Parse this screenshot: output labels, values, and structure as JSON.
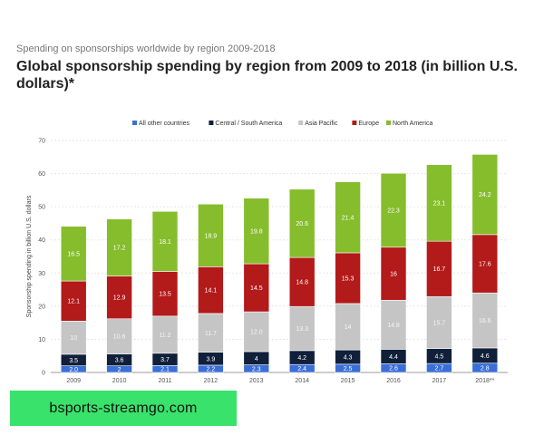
{
  "header": {
    "subtitle": "Spending on sponsorships worldwide by region 2009-2018",
    "title": "Global sponsorship spending by region from 2009 to 2018 (in billion U.S. dollars)*"
  },
  "watermark": {
    "text": "bsports-streamgo.com"
  },
  "chart_data": {
    "type": "bar",
    "stacked": true,
    "categories": [
      "2009",
      "2010",
      "2011",
      "2012",
      "2013",
      "2014",
      "2015",
      "2016",
      "2017",
      "2018**"
    ],
    "ylabel": "Sponsorship spending in billion U.S. dollars",
    "xlabel": "",
    "ylim": [
      0,
      70
    ],
    "yticks": [
      0,
      10,
      20,
      30,
      40,
      50,
      60,
      70
    ],
    "grid": true,
    "legend_position": "top",
    "series": [
      {
        "name": "All other countries",
        "color": "#3a6fd8",
        "values": [
          2.0,
          2.0,
          2.1,
          2.2,
          2.3,
          2.4,
          2.5,
          2.6,
          2.7,
          2.8
        ],
        "labels": [
          "2.0",
          "2",
          "2.1",
          "2.2",
          "2.3",
          "2.4",
          "2.5",
          "2.6",
          "2.7",
          "2.8"
        ]
      },
      {
        "name": "Central / South America",
        "color": "#10203a",
        "values": [
          3.5,
          3.6,
          3.7,
          3.9,
          4.0,
          4.2,
          4.3,
          4.4,
          4.5,
          4.6
        ],
        "labels": [
          "3.5",
          "3.6",
          "3.7",
          "3.9",
          "4",
          "4.2",
          "4.3",
          "4.4",
          "4.5",
          "4.6"
        ]
      },
      {
        "name": "Asia Pacific",
        "color": "#c5c5c5",
        "values": [
          10.0,
          10.6,
          11.2,
          11.7,
          12.0,
          13.3,
          14.0,
          14.8,
          15.7,
          16.6
        ],
        "labels": [
          "10",
          "10.6",
          "11.2",
          "11.7",
          "12.0",
          "13.3",
          "14",
          "14.8",
          "15.7",
          "16.6"
        ]
      },
      {
        "name": "Europe",
        "color": "#b31a1a",
        "values": [
          12.1,
          12.9,
          13.5,
          14.1,
          14.5,
          14.8,
          15.3,
          16.0,
          16.7,
          17.6
        ],
        "labels": [
          "12.1",
          "12.9",
          "13.5",
          "14.1",
          "14.5",
          "14.8",
          "15.3",
          "16",
          "16.7",
          "17.6"
        ]
      },
      {
        "name": "North America",
        "color": "#85bd2c",
        "values": [
          16.5,
          17.2,
          18.1,
          18.9,
          19.8,
          20.6,
          21.4,
          22.3,
          23.1,
          24.2
        ],
        "labels": [
          "16.5",
          "17.2",
          "18.1",
          "18.9",
          "19.8",
          "20.6",
          "21.4",
          "22.3",
          "23.1",
          "24.2"
        ]
      }
    ]
  }
}
